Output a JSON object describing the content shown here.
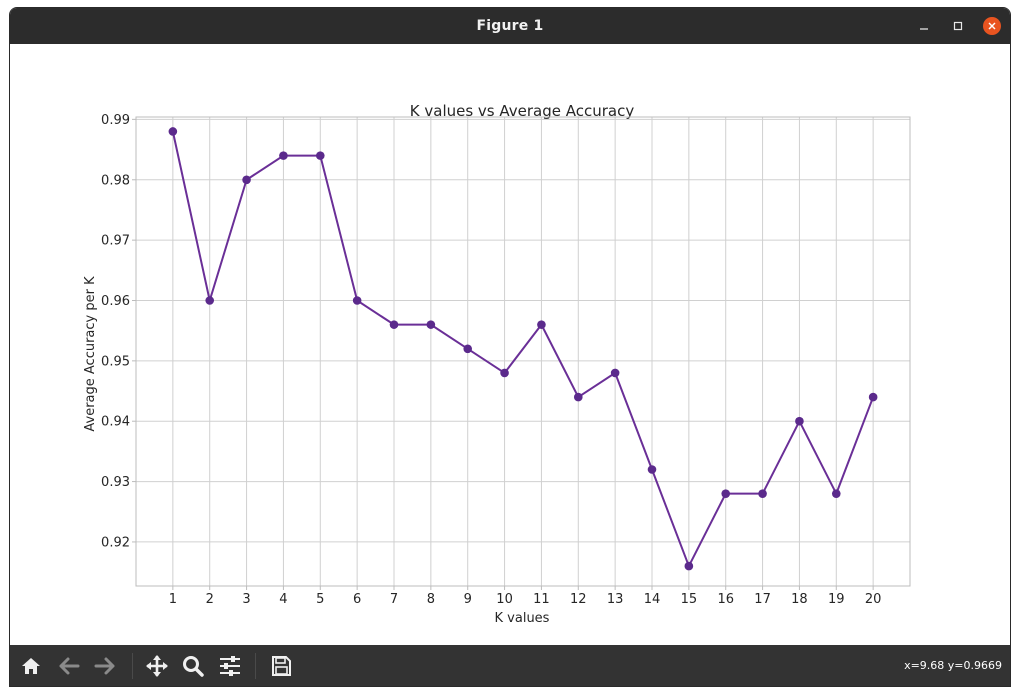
{
  "window": {
    "title": "Figure 1"
  },
  "toolbar": {
    "buttons": [
      "home-icon",
      "back-icon",
      "forward-icon",
      "pan-icon",
      "zoom-icon",
      "configure-subplots-icon",
      "save-icon"
    ],
    "coords": "x=9.68 y=0.9669"
  },
  "colors": {
    "line": "#6a2f97",
    "marker": "#5b2a8c",
    "grid": "#d0d0d0",
    "axes": "#bcbcbc",
    "text": "#262626",
    "titlebar": "#2c2c2c",
    "toolbar": "#333333",
    "close": "#e95420"
  },
  "chart_data": {
    "type": "line",
    "title": "K values vs Average Accuracy",
    "xlabel": "K values",
    "ylabel": "Average Accuracy per K",
    "x": [
      1,
      2,
      3,
      4,
      5,
      6,
      7,
      8,
      9,
      10,
      11,
      12,
      13,
      14,
      15,
      16,
      17,
      18,
      19,
      20
    ],
    "series": [
      {
        "values": [
          0.988,
          0.96,
          0.98,
          0.984,
          0.984,
          0.96,
          0.956,
          0.956,
          0.952,
          0.948,
          0.956,
          0.944,
          0.948,
          0.932,
          0.916,
          0.928,
          0.928,
          0.94,
          0.928,
          0.944
        ],
        "marker": "circle"
      }
    ],
    "xlim": [
      0,
      21
    ],
    "ylim": [
      0.9127,
      0.9904
    ],
    "xticks": [
      "1",
      "2",
      "3",
      "4",
      "5",
      "6",
      "7",
      "8",
      "9",
      "10",
      "11",
      "12",
      "13",
      "14",
      "15",
      "16",
      "17",
      "18",
      "19",
      "20"
    ],
    "yticks": [
      "0.92",
      "0.93",
      "0.94",
      "0.95",
      "0.96",
      "0.97",
      "0.98",
      "0.99"
    ],
    "ytick_values": [
      0.92,
      0.93,
      0.94,
      0.95,
      0.96,
      0.97,
      0.98,
      0.99
    ],
    "grid": true,
    "legend": "none"
  }
}
